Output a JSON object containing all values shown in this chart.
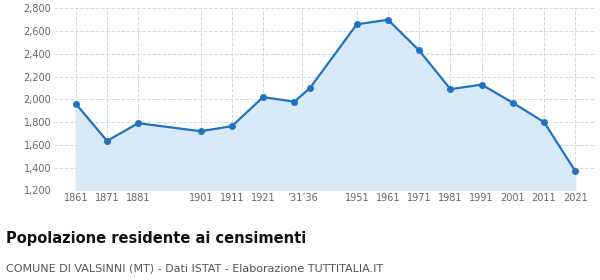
{
  "years": [
    1861,
    1871,
    1881,
    1901,
    1911,
    1921,
    1931,
    1936,
    1951,
    1961,
    1971,
    1981,
    1991,
    2001,
    2011,
    2021
  ],
  "population": [
    1961,
    1635,
    1791,
    1720,
    1765,
    2020,
    1980,
    2100,
    2660,
    2700,
    2430,
    2090,
    2130,
    1970,
    1800,
    1370
  ],
  "xtick_positions": [
    1861,
    1871,
    1881,
    1901,
    1911,
    1921,
    1933.5,
    1951,
    1961,
    1971,
    1981,
    1991,
    2001,
    2011,
    2021
  ],
  "xtick_labels": [
    "1861",
    "1871",
    "1881",
    "1901",
    "1911",
    "1921",
    "’31’36",
    "1951",
    "1961",
    "1971",
    "1981",
    "1991",
    "2001",
    "2011",
    "2021"
  ],
  "ylim": [
    1200,
    2800
  ],
  "yticks": [
    1200,
    1400,
    1600,
    1800,
    2000,
    2200,
    2400,
    2600,
    2800
  ],
  "line_color": "#2272c3",
  "fill_color": "#d8eaf8",
  "marker": "o",
  "marker_size": 4,
  "line_width": 1.6,
  "bg_color": "#ffffff",
  "grid_color": "#c8dcea",
  "title": "Popolazione residente ai censimenti",
  "subtitle": "COMUNE DI VALSINNI (MT) - Dati ISTAT - Elaborazione TUTTITALIA.IT",
  "title_fontsize": 10.5,
  "subtitle_fontsize": 8,
  "xlim_left": 1854,
  "xlim_right": 2027
}
